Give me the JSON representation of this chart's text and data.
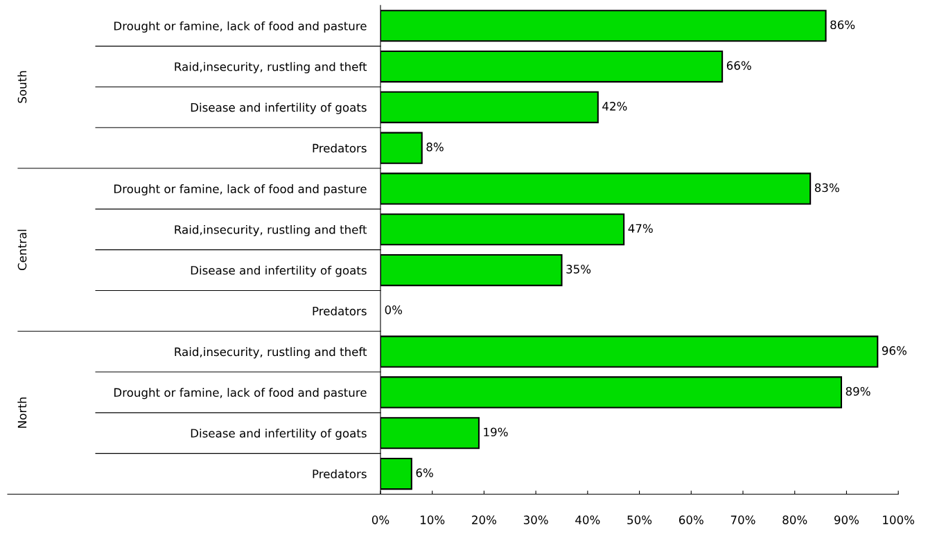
{
  "chart_data": {
    "type": "bar",
    "orientation": "horizontal",
    "categories": [
      "Drought or famine, lack of food and pasture",
      "Raid,insecurity, rustling and theft",
      "Disease and infertility of goats",
      "Predators",
      "Drought or famine, lack of food and pasture",
      "Raid,insecurity, rustling and theft",
      "Disease and infertility of goats",
      "Predators",
      "Raid,insecurity, rustling and theft",
      "Drought or famine, lack of food and pasture",
      "Disease and infertility of goats",
      "Predators"
    ],
    "values": [
      86,
      66,
      42,
      8,
      83,
      47,
      35,
      0,
      96,
      89,
      19,
      6
    ],
    "value_labels": [
      "86%",
      "66%",
      "42%",
      "8%",
      "83%",
      "47%",
      "35%",
      "0%",
      "96%",
      "89%",
      "19%",
      "6%"
    ],
    "color": "#00dd00",
    "annotations": [
      "South",
      "Central",
      "North"
    ],
    "xlim": [
      0,
      100
    ],
    "xticks": [
      {
        "value": 0,
        "label": "0%"
      },
      {
        "value": 10,
        "label": "10%"
      },
      {
        "value": 20,
        "label": "20%"
      },
      {
        "value": 30,
        "label": "30%"
      },
      {
        "value": 40,
        "label": "40%"
      },
      {
        "value": 50,
        "label": "50%"
      },
      {
        "value": 60,
        "label": "60%"
      },
      {
        "value": 70,
        "label": "70%"
      },
      {
        "value": 80,
        "label": "80%"
      },
      {
        "value": 90,
        "label": "90%"
      },
      {
        "value": 100,
        "label": "100%"
      }
    ],
    "grid": false
  }
}
